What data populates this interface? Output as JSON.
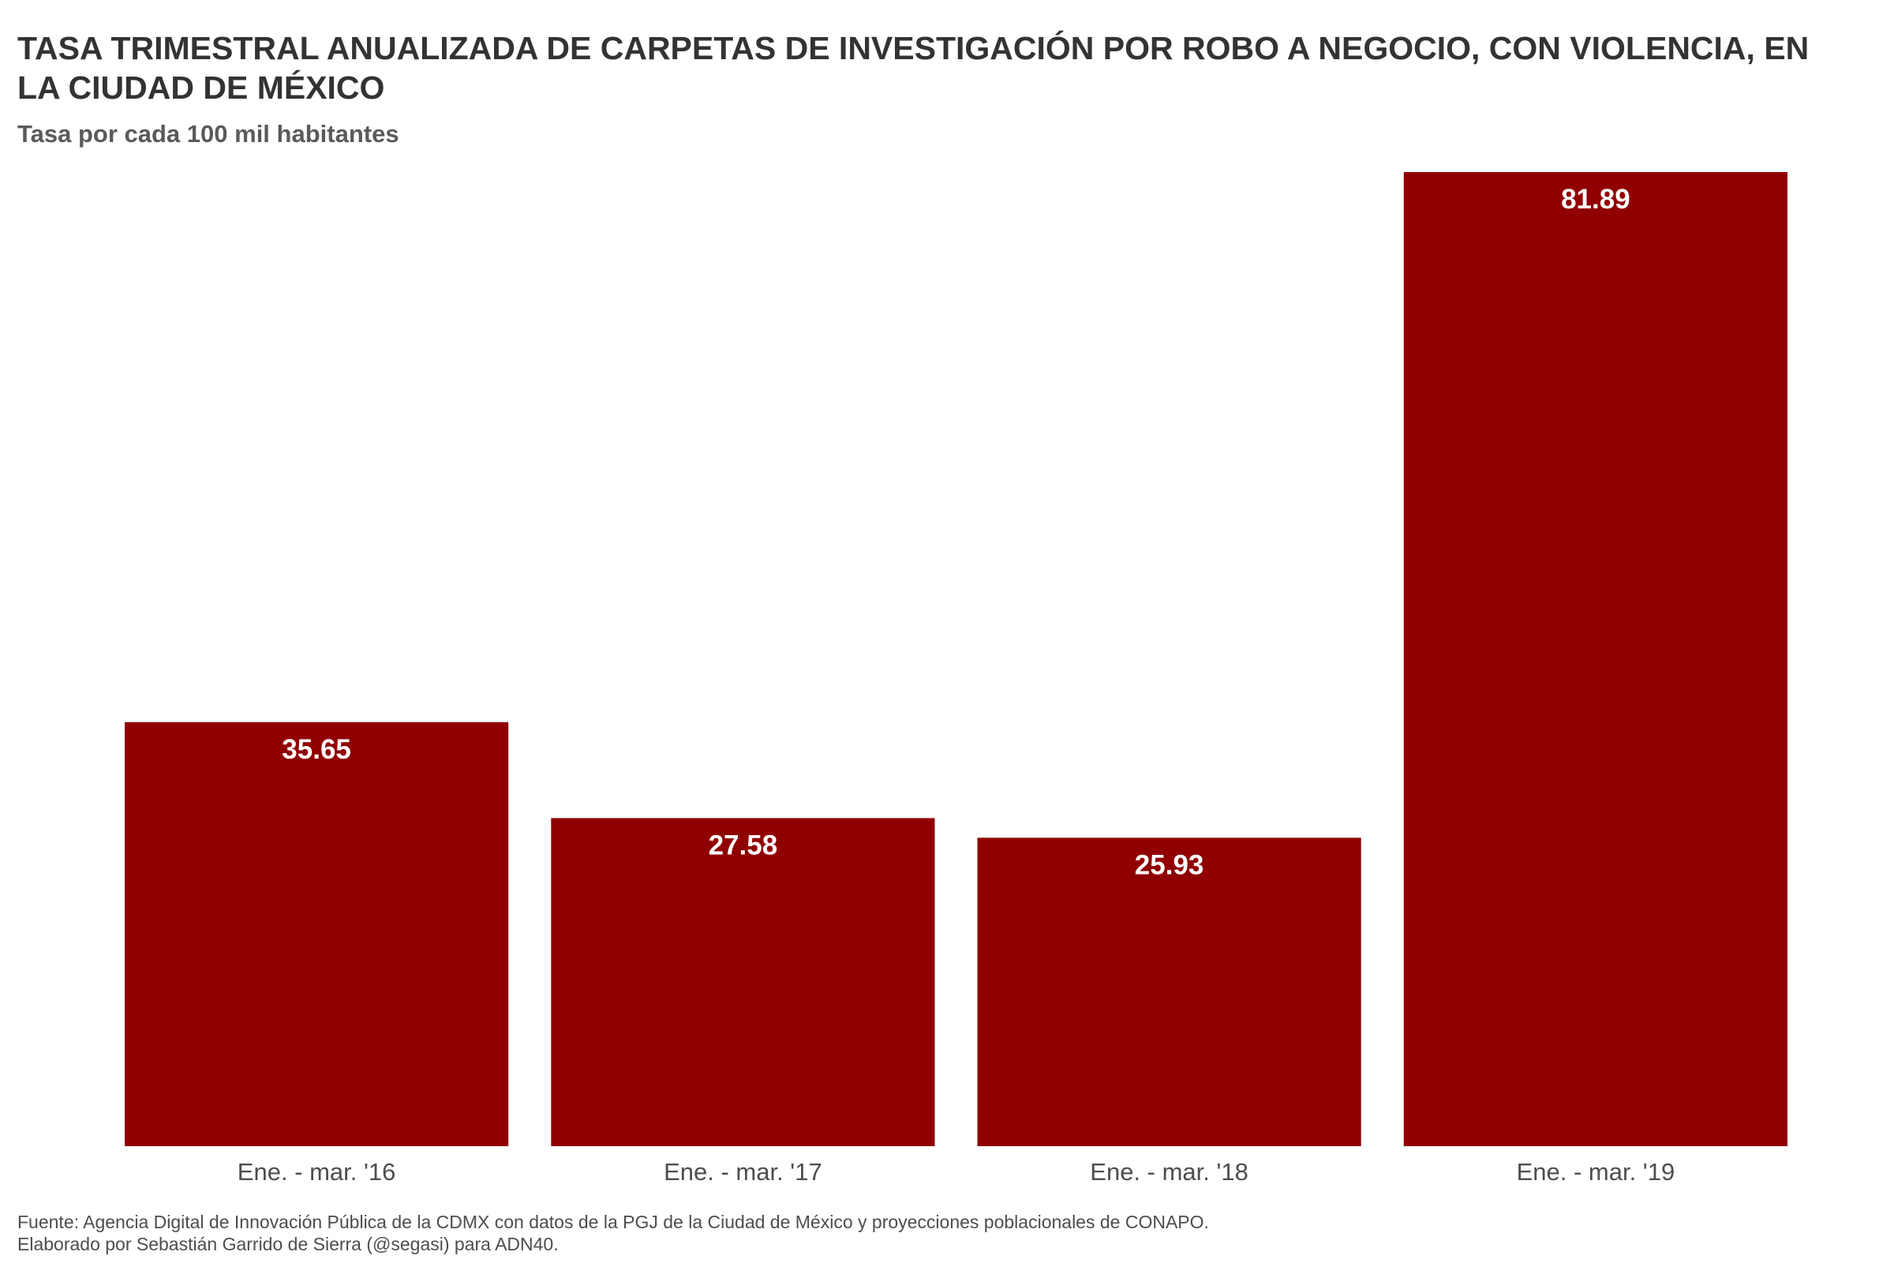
{
  "chart_data": {
    "type": "bar",
    "title": "TASA TRIMESTRAL ANUALIZADA DE CARPETAS DE INVESTIGACIÓN POR ROBO A NEGOCIO, CON VIOLENCIA, EN LA CIUDAD DE MÉXICO",
    "subtitle": "Tasa por cada 100 mil habitantes",
    "categories": [
      "Ene. - mar. '16",
      "Ene. - mar. '17",
      "Ene. - mar. '18",
      "Ene. - mar. '19"
    ],
    "values": [
      35.65,
      27.58,
      25.93,
      81.89
    ],
    "value_labels": [
      "35.65",
      "27.58",
      "25.93",
      "81.89"
    ],
    "xlabel": "",
    "ylabel": "",
    "ylim": [
      0,
      81.89
    ],
    "grid": false,
    "bar_color": "#900000",
    "label_color": "#ffffff"
  },
  "caption": {
    "line1": "Fuente: Agencia Digital de Innovación Pública de la CDMX con datos de la PGJ de la Ciudad de México y proyecciones poblacionales de CONAPO.",
    "line2": "Elaborado por Sebastián Garrido de Sierra (@segasi) para ADN40."
  }
}
